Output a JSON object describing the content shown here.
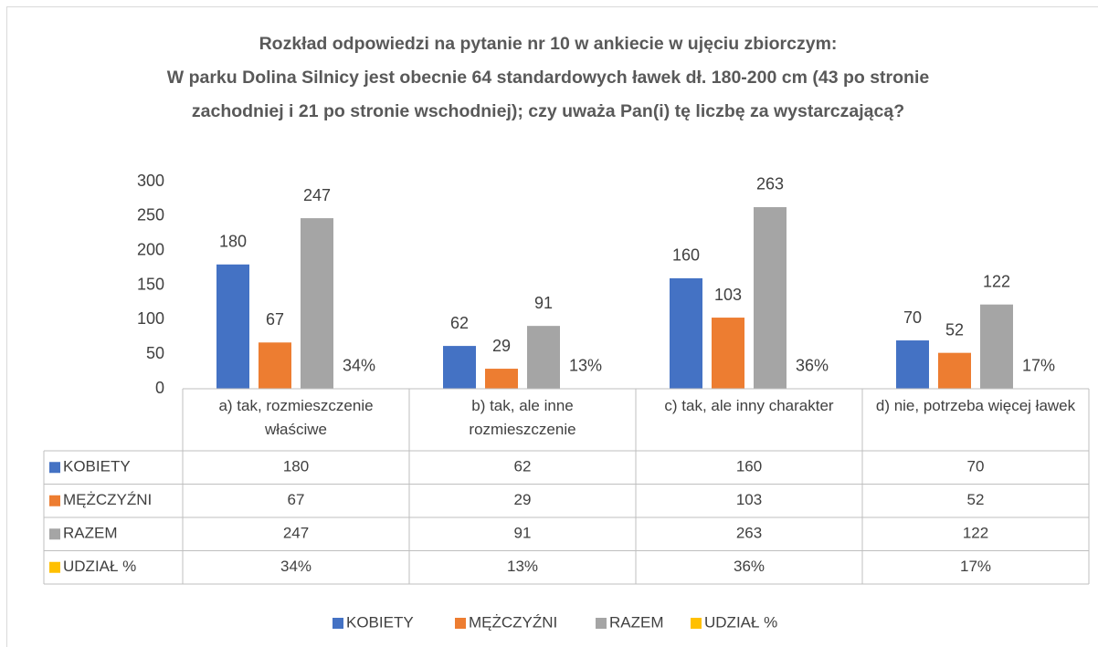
{
  "chart_data": {
    "type": "bar",
    "title": "Rozkład odpowiedzi na pytanie nr 10 w ankiecie w ujęciu zbiorczym:\nW parku Dolina Silnicy jest obecnie 64 standardowych ławek dł. 180-200 cm (43 po stronie zachodniej i 21 po stronie wschodniej); czy uważa Pan(i) tę liczbę za wystarczającą?",
    "categories": [
      "a) tak, rozmieszczenie właściwe",
      "b) tak, ale inne rozmieszczenie",
      "c) tak, ale inny charakter",
      "d) nie, potrzeba więcej ławek"
    ],
    "series": [
      {
        "name": "KOBIETY",
        "color": "#4472c4",
        "values": [
          180,
          62,
          160,
          70
        ]
      },
      {
        "name": "MĘŻCZYŹNI",
        "color": "#ed7d31",
        "values": [
          67,
          29,
          103,
          52
        ]
      },
      {
        "name": "RAZEM",
        "color": "#a5a5a5",
        "values": [
          247,
          91,
          263,
          122
        ]
      },
      {
        "name": "UDZIAŁ %",
        "color": "#ffc000",
        "values": [
          0.34,
          0.13,
          0.36,
          0.17
        ],
        "value_labels": [
          "34%",
          "13%",
          "36%",
          "17%"
        ]
      }
    ],
    "ylim": [
      0,
      300
    ],
    "yticks": [
      0,
      50,
      100,
      150,
      200,
      250,
      300
    ],
    "grid": false,
    "legend": "bottom",
    "data_table": true
  }
}
